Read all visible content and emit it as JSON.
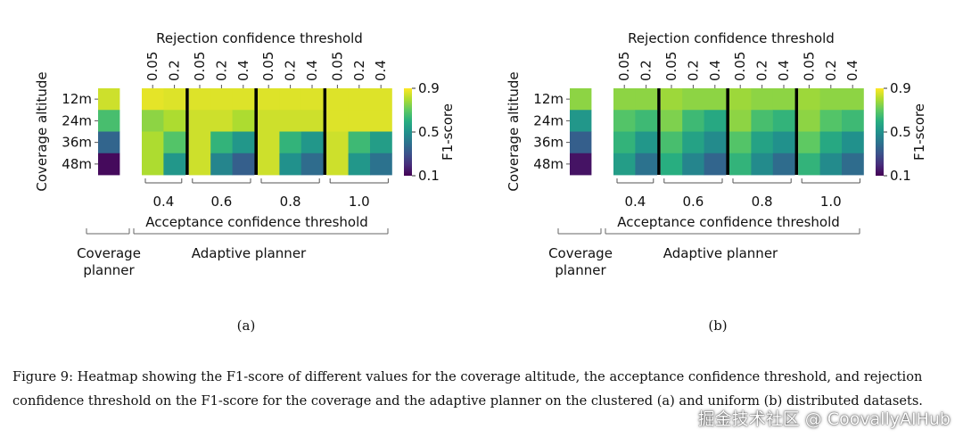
{
  "chart_data": [
    {
      "type": "heatmap",
      "panel_label": "(a)",
      "top_axis_label": "Rejection confidence threshold",
      "bottom_axis_label": "Acceptance confidence threshold",
      "y_axis_label": "Coverage altitude",
      "colorbar_label": "F1-score",
      "colorbar_ticks": [
        "0.9",
        "0.5",
        "0.1"
      ],
      "color_range": [
        0.1,
        0.9
      ],
      "rows": [
        "12m",
        "24m",
        "36m",
        "48m"
      ],
      "rejection_ticks": [
        "0.05",
        "0.2",
        "0.05",
        "0.2",
        "0.4",
        "0.05",
        "0.2",
        "0.4",
        "0.05",
        "0.2",
        "0.4"
      ],
      "acceptance_groups": [
        "0.4",
        "0.6",
        "0.8",
        "1.0"
      ],
      "group_sizes": [
        2,
        3,
        3,
        3
      ],
      "planner_labels": {
        "coverage": "Coverage planner",
        "adaptive": "Adaptive planner"
      },
      "coverage_values": [
        0.84,
        0.66,
        0.36,
        0.12
      ],
      "adaptive_values": [
        [
          0.87,
          0.86,
          0.86,
          0.86,
          0.86,
          0.86,
          0.86,
          0.86,
          0.86,
          0.86,
          0.86
        ],
        [
          0.76,
          0.8,
          0.84,
          0.84,
          0.8,
          0.84,
          0.84,
          0.84,
          0.86,
          0.86,
          0.86
        ],
        [
          0.8,
          0.68,
          0.84,
          0.62,
          0.52,
          0.84,
          0.62,
          0.52,
          0.84,
          0.64,
          0.54
        ],
        [
          0.8,
          0.52,
          0.84,
          0.46,
          0.34,
          0.84,
          0.5,
          0.38,
          0.84,
          0.52,
          0.4
        ]
      ]
    },
    {
      "type": "heatmap",
      "panel_label": "(b)",
      "top_axis_label": "Rejection confidence threshold",
      "bottom_axis_label": "Acceptance confidence threshold",
      "y_axis_label": "Coverage altitude",
      "colorbar_label": "F1-score",
      "colorbar_ticks": [
        "0.9",
        "0.5",
        "0.1"
      ],
      "color_range": [
        0.1,
        0.9
      ],
      "rows": [
        "12m",
        "24m",
        "36m",
        "48m"
      ],
      "rejection_ticks": [
        "0.05",
        "0.2",
        "0.05",
        "0.2",
        "0.4",
        "0.05",
        "0.2",
        "0.4",
        "0.05",
        "0.2",
        "0.4"
      ],
      "acceptance_groups": [
        "0.4",
        "0.6",
        "0.8",
        "1.0"
      ],
      "group_sizes": [
        2,
        3,
        3,
        3
      ],
      "planner_labels": {
        "coverage": "Coverage planner",
        "adaptive": "Adaptive planner"
      },
      "coverage_values": [
        0.76,
        0.52,
        0.34,
        0.14
      ],
      "adaptive_values": [
        [
          0.76,
          0.76,
          0.78,
          0.76,
          0.76,
          0.78,
          0.76,
          0.76,
          0.78,
          0.76,
          0.76
        ],
        [
          0.68,
          0.64,
          0.74,
          0.64,
          0.58,
          0.76,
          0.66,
          0.62,
          0.76,
          0.68,
          0.64
        ],
        [
          0.62,
          0.52,
          0.66,
          0.56,
          0.48,
          0.68,
          0.56,
          0.5,
          0.7,
          0.58,
          0.5
        ],
        [
          0.54,
          0.4,
          0.6,
          0.46,
          0.36,
          0.62,
          0.48,
          0.38,
          0.62,
          0.48,
          0.38
        ]
      ]
    }
  ],
  "caption": "Figure 9: Heatmap showing the F1-score of different values for the coverage altitude, the acceptance confidence threshold, and rejection confidence threshold on the F1-score for the coverage and the adaptive planner on the clustered (a) and uniform (b) distributed datasets.",
  "watermark": "掘金技术社区 @ CoovallyAIHub"
}
